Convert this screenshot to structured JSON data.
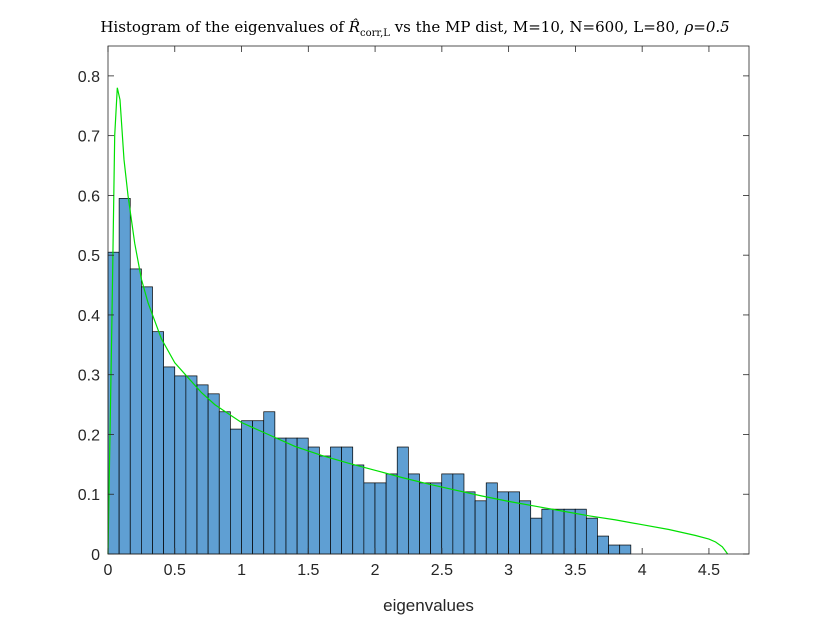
{
  "chart_data": {
    "type": "bar",
    "title": "Histogram of the eigenvalues of",
    "title_symbol": "R̂",
    "title_subscript": "corr,L",
    "title_suffix": " vs the MP dist, M=10, N=600, L=80, ",
    "title_rho": "ρ=0.5",
    "xlabel": "eigenvalues",
    "ylabel": "",
    "xlim": [
      0,
      4.8
    ],
    "ylim": [
      0,
      0.85
    ],
    "xticks": [
      0,
      0.5,
      1,
      1.5,
      2,
      2.5,
      3,
      3.5,
      4,
      4.5
    ],
    "xtick_labels": [
      "0",
      "0.5",
      "1",
      "1.5",
      "2",
      "2.5",
      "3",
      "3.5",
      "4",
      "4.5"
    ],
    "yticks": [
      0,
      0.1,
      0.2,
      0.3,
      0.4,
      0.5,
      0.6,
      0.7,
      0.8
    ],
    "ytick_labels": [
      "0",
      "0.1",
      "0.2",
      "0.3",
      "0.4",
      "0.5",
      "0.6",
      "0.7",
      "0.8"
    ],
    "bin_width": 0.0833,
    "bin_start": 0,
    "values": [
      0.505,
      0.595,
      0.477,
      0.447,
      0.372,
      0.313,
      0.298,
      0.298,
      0.283,
      0.268,
      0.238,
      0.209,
      0.223,
      0.223,
      0.238,
      0.194,
      0.194,
      0.194,
      0.179,
      0.164,
      0.179,
      0.179,
      0.149,
      0.119,
      0.119,
      0.134,
      0.179,
      0.134,
      0.119,
      0.119,
      0.134,
      0.134,
      0.104,
      0.089,
      0.119,
      0.104,
      0.104,
      0.089,
      0.06,
      0.075,
      0.075,
      0.075,
      0.075,
      0.06,
      0.03,
      0.015,
      0.015
    ],
    "bar_color": "#5f9fd3",
    "bar_edge_color": "#000000",
    "mp_curve": {
      "color": "#00e000",
      "x": [
        0.0,
        0.03,
        0.05,
        0.07,
        0.09,
        0.12,
        0.15,
        0.2,
        0.25,
        0.3,
        0.4,
        0.5,
        0.6,
        0.7,
        0.8,
        0.9,
        1.0,
        1.2,
        1.4,
        1.6,
        1.8,
        2.0,
        2.2,
        2.4,
        2.6,
        2.8,
        3.0,
        3.2,
        3.4,
        3.6,
        3.8,
        4.0,
        4.2,
        4.4,
        4.5,
        4.55,
        4.6,
        4.62,
        4.64
      ],
      "y": [
        0.0,
        0.4,
        0.7,
        0.78,
        0.76,
        0.66,
        0.6,
        0.52,
        0.46,
        0.42,
        0.36,
        0.32,
        0.295,
        0.27,
        0.25,
        0.235,
        0.22,
        0.2,
        0.18,
        0.165,
        0.152,
        0.14,
        0.128,
        0.117,
        0.107,
        0.097,
        0.088,
        0.08,
        0.072,
        0.064,
        0.057,
        0.049,
        0.041,
        0.031,
        0.025,
        0.02,
        0.012,
        0.006,
        0.0
      ]
    }
  }
}
